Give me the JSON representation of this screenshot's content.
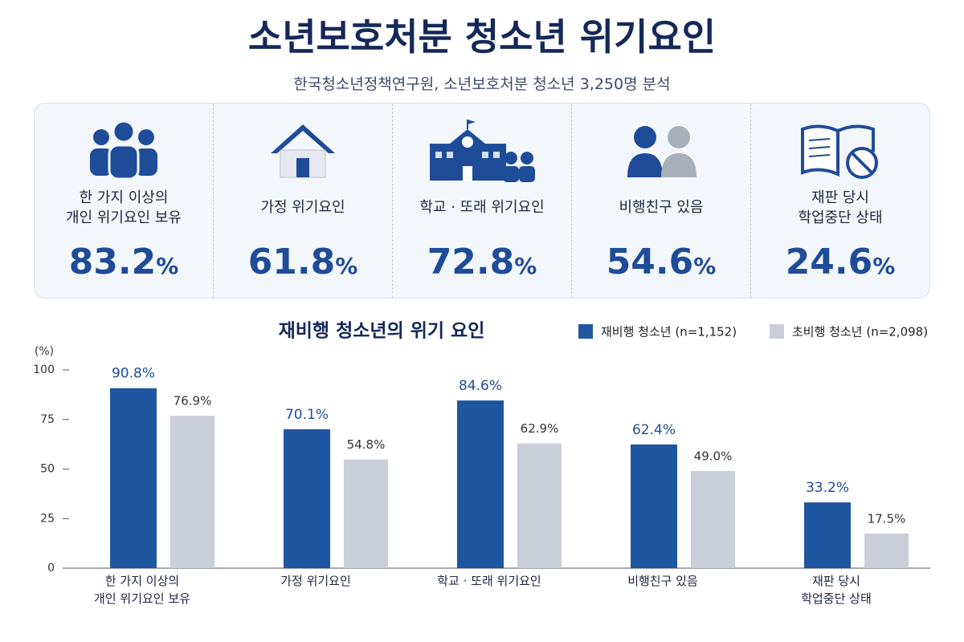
{
  "header": {
    "title": "소년보호처분 청소년 위기요인",
    "subtitle": "한국청소년정책연구원, 소년보호처분 청소년 3,250명 분석"
  },
  "cards": [
    {
      "label": "한 가지 이상의\n개인 위기요인 보유",
      "value": 83.2,
      "unit": "%"
    },
    {
      "label": "가정 위기요인",
      "value": 61.8,
      "unit": "%"
    },
    {
      "label": "학교 · 또래 위기요인",
      "value": 72.8,
      "unit": "%"
    },
    {
      "label": "비행친구 있음",
      "value": 54.6,
      "unit": "%"
    },
    {
      "label": "재판 당시\n학업중단 상태",
      "value": 24.6,
      "unit": "%"
    }
  ],
  "chart_data": {
    "type": "bar",
    "title": "재비행 청소년의 위기 요인",
    "y_label": "(%)",
    "categories": [
      "한 가지 이상의\n개인 위기요인 보유",
      "가정 위기요인",
      "학교 · 또래 위기요인",
      "비행친구 있음",
      "재판 당시\n학업중단 상태"
    ],
    "series": [
      {
        "name": "재비행 청소년 (n=1,152)",
        "color": "#1f56a0",
        "values": [
          90.8,
          70.1,
          84.6,
          62.4,
          33.2
        ],
        "value_labels": [
          "90.8%",
          "70.1%",
          "84.6%",
          "62.4%",
          "33.2%"
        ]
      },
      {
        "name": "초비행 청소년 (n=2,098)",
        "color": "#c9ced8",
        "values": [
          76.9,
          54.8,
          62.9,
          49.0,
          17.5
        ],
        "value_labels": [
          "76.9%",
          "54.8%",
          "62.9%",
          "49.0%",
          "17.5%"
        ]
      }
    ],
    "ylim": [
      0,
      100
    ],
    "yticks": [
      0,
      25,
      50,
      75,
      100
    ],
    "grid": false
  }
}
